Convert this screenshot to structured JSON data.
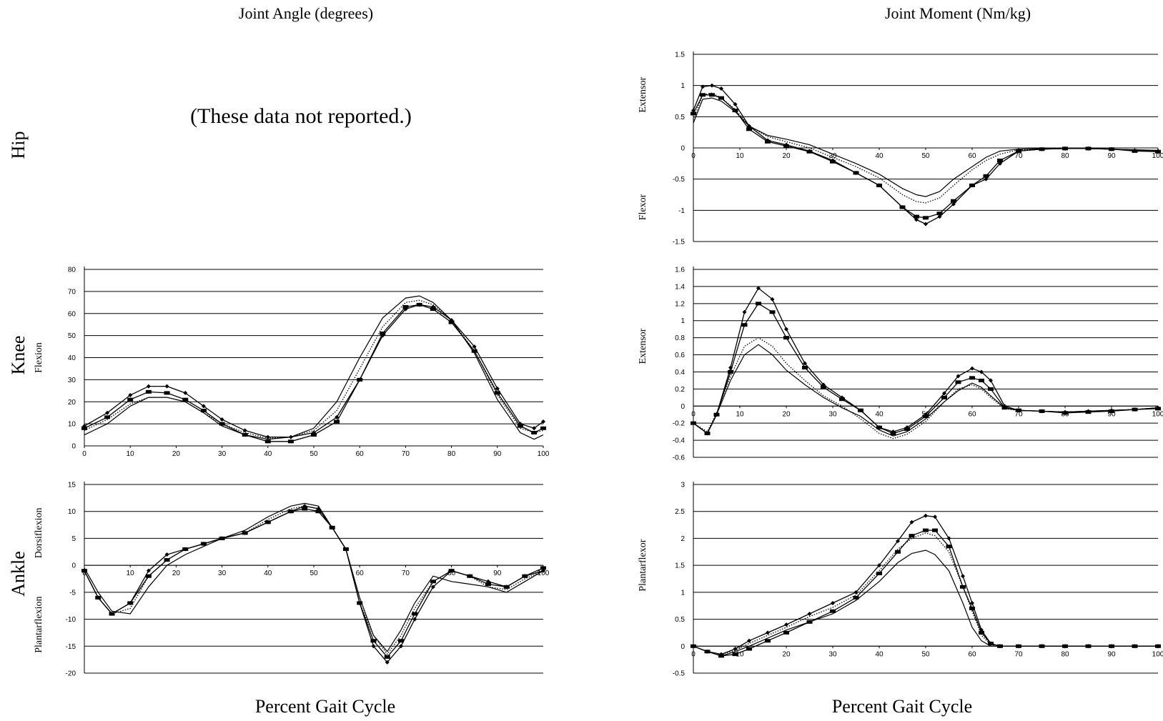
{
  "header": {
    "left_title": "Joint Angle (degrees)",
    "right_title": "Joint Moment (Nm/kg)"
  },
  "rows": {
    "hip": "Hip",
    "knee": "Knee",
    "ankle": "Ankle"
  },
  "hip_angle_note": "(These data not reported.)",
  "x_axis_label": "Percent Gait Cycle",
  "chart_data": [
    {
      "id": "knee-angle",
      "type": "line",
      "ylim": [
        0,
        80
      ],
      "yticks": [
        0,
        10,
        20,
        30,
        40,
        50,
        60,
        70,
        80
      ],
      "xlim": [
        0,
        100
      ],
      "xticks": [
        0,
        10,
        20,
        30,
        40,
        50,
        60,
        70,
        80,
        90,
        100
      ],
      "y_direction_labels": [
        {
          "text": "Flexion",
          "at": 40
        }
      ],
      "x": [
        0,
        5,
        10,
        14,
        18,
        22,
        26,
        30,
        35,
        40,
        45,
        50,
        55,
        60,
        65,
        70,
        73,
        76,
        80,
        85,
        90,
        95,
        98,
        100
      ],
      "series": [
        {
          "style": "diamond",
          "values": [
            9,
            15,
            23,
            27,
            27,
            24,
            18,
            12,
            7,
            4,
            4,
            6,
            13,
            30,
            50,
            62,
            64,
            63,
            57,
            45,
            26,
            10,
            8,
            11
          ]
        },
        {
          "style": "square",
          "values": [
            8,
            13,
            21,
            24.5,
            24,
            21,
            16,
            10,
            5,
            2,
            2,
            5,
            11,
            30,
            51,
            63,
            64,
            62,
            56,
            43,
            24,
            9,
            6,
            8
          ]
        },
        {
          "style": "dotted",
          "values": [
            7,
            12,
            19,
            22,
            22,
            20,
            15,
            10,
            6,
            3.5,
            4,
            7,
            16,
            35,
            54,
            65,
            66,
            64,
            57,
            43,
            23,
            8,
            6,
            7
          ]
        },
        {
          "style": "solid",
          "values": [
            5,
            10,
            18,
            22,
            22,
            20,
            15,
            9,
            5,
            3,
            4,
            8,
            20,
            40,
            58,
            67,
            68,
            65,
            57,
            42,
            21,
            6,
            3,
            5
          ]
        }
      ]
    },
    {
      "id": "ankle-angle",
      "type": "line",
      "ylim": [
        -20,
        15
      ],
      "yticks": [
        -20,
        -15,
        -10,
        -5,
        0,
        5,
        10,
        15
      ],
      "xlim": [
        0,
        100
      ],
      "xticks": [
        0,
        10,
        20,
        30,
        40,
        50,
        60,
        70,
        80,
        90,
        100
      ],
      "y_direction_labels": [
        {
          "text": "Dorsiflexion",
          "at": 6
        },
        {
          "text": "Plantarflexion",
          "at": -11
        }
      ],
      "x": [
        0,
        3,
        6,
        10,
        14,
        18,
        22,
        26,
        30,
        35,
        40,
        45,
        48,
        51,
        54,
        57,
        60,
        63,
        66,
        69,
        72,
        76,
        80,
        84,
        88,
        92,
        96,
        100
      ],
      "series": [
        {
          "style": "diamond",
          "values": [
            -1,
            -6,
            -9,
            -7,
            -1,
            2,
            3,
            4,
            5,
            6,
            8,
            10,
            11,
            10.5,
            7,
            3,
            -7,
            -15,
            -18,
            -15,
            -10,
            -4,
            -1,
            -2,
            -3,
            -4,
            -2,
            -1
          ]
        },
        {
          "style": "square",
          "values": [
            -1,
            -6,
            -9,
            -7,
            -2,
            1,
            3,
            4,
            5,
            6,
            8,
            10,
            10.5,
            10,
            7,
            3,
            -7,
            -14,
            -17,
            -14,
            -9,
            -3,
            -1,
            -2,
            -3.5,
            -4,
            -2,
            -0.5
          ]
        },
        {
          "style": "dotted",
          "values": [
            -1,
            -6,
            -9,
            -8,
            -2,
            1,
            3,
            4,
            5,
            6,
            8.5,
            10.5,
            11,
            10.5,
            7,
            3,
            -7,
            -13,
            -16.5,
            -13,
            -8,
            -3,
            -1,
            -2,
            -4,
            -4.5,
            -2.5,
            -1
          ]
        },
        {
          "style": "solid",
          "values": [
            -0.5,
            -5,
            -8.5,
            -9,
            -4,
            0,
            2,
            3.5,
            5,
            6.5,
            9,
            11,
            11.5,
            11,
            7,
            3,
            -6,
            -13,
            -16,
            -12,
            -7,
            -2,
            -3,
            -3.5,
            -4,
            -5,
            -3,
            -1
          ]
        }
      ]
    },
    {
      "id": "hip-moment",
      "type": "line",
      "ylim": [
        -1.5,
        1.5
      ],
      "yticks": [
        -1.5,
        -1,
        -0.5,
        0,
        0.5,
        1,
        1.5
      ],
      "xlim": [
        0,
        100
      ],
      "xticks": [
        0,
        10,
        20,
        30,
        40,
        50,
        60,
        70,
        80,
        90,
        100
      ],
      "y_direction_labels": [
        {
          "text": "Extensor",
          "at": 0.85
        },
        {
          "text": "Flexor",
          "at": -0.95
        }
      ],
      "x": [
        0,
        2,
        4,
        6,
        9,
        12,
        16,
        20,
        25,
        30,
        35,
        40,
        45,
        48,
        50,
        53,
        56,
        60,
        63,
        66,
        70,
        75,
        80,
        85,
        90,
        95,
        100
      ],
      "series": [
        {
          "style": "diamond",
          "values": [
            0.6,
            0.98,
            1.0,
            0.95,
            0.7,
            0.35,
            0.12,
            0.05,
            -0.05,
            -0.2,
            -0.4,
            -0.6,
            -0.95,
            -1.15,
            -1.22,
            -1.1,
            -0.9,
            -0.6,
            -0.5,
            -0.25,
            -0.05,
            -0.02,
            -0.01,
            -0.01,
            -0.02,
            -0.04,
            -0.05
          ]
        },
        {
          "style": "square",
          "values": [
            0.55,
            0.85,
            0.85,
            0.8,
            0.6,
            0.3,
            0.1,
            0.03,
            -0.06,
            -0.22,
            -0.4,
            -0.6,
            -0.95,
            -1.1,
            -1.12,
            -1.05,
            -0.85,
            -0.6,
            -0.45,
            -0.2,
            -0.05,
            -0.02,
            -0.01,
            -0.01,
            -0.02,
            -0.05,
            -0.06
          ]
        },
        {
          "style": "dotted",
          "values": [
            0.45,
            0.85,
            0.88,
            0.8,
            0.62,
            0.35,
            0.18,
            0.1,
            0.0,
            -0.15,
            -0.3,
            -0.48,
            -0.75,
            -0.86,
            -0.88,
            -0.8,
            -0.6,
            -0.35,
            -0.2,
            -0.1,
            -0.03,
            -0.02,
            -0.01,
            -0.01,
            -0.02,
            -0.03,
            -0.04
          ]
        },
        {
          "style": "solid",
          "values": [
            0.4,
            0.78,
            0.8,
            0.75,
            0.58,
            0.35,
            0.2,
            0.14,
            0.05,
            -0.1,
            -0.25,
            -0.42,
            -0.65,
            -0.75,
            -0.78,
            -0.7,
            -0.5,
            -0.3,
            -0.15,
            -0.05,
            -0.02,
            -0.01,
            -0.01,
            -0.01,
            -0.02,
            -0.03,
            -0.04
          ]
        }
      ]
    },
    {
      "id": "knee-moment",
      "type": "line",
      "ylim": [
        -0.6,
        1.6
      ],
      "yticks": [
        -0.6,
        -0.4,
        -0.2,
        0,
        0.2,
        0.4,
        0.6,
        0.8,
        1,
        1.2,
        1.4,
        1.6
      ],
      "xlim": [
        0,
        100
      ],
      "xticks": [
        0,
        10,
        20,
        30,
        40,
        50,
        60,
        70,
        80,
        90,
        100
      ],
      "y_direction_labels": [
        {
          "text": "Extensor",
          "at": 0.7
        }
      ],
      "x": [
        0,
        3,
        5,
        8,
        11,
        14,
        17,
        20,
        24,
        28,
        32,
        36,
        40,
        43,
        46,
        50,
        54,
        57,
        60,
        62,
        64,
        67,
        70,
        75,
        80,
        85,
        90,
        95,
        100
      ],
      "series": [
        {
          "style": "diamond",
          "values": [
            -0.2,
            -0.32,
            -0.1,
            0.45,
            1.1,
            1.38,
            1.25,
            0.9,
            0.5,
            0.25,
            0.1,
            -0.05,
            -0.25,
            -0.3,
            -0.25,
            -0.1,
            0.15,
            0.35,
            0.44,
            0.4,
            0.3,
            0.0,
            -0.05,
            -0.06,
            -0.07,
            -0.06,
            -0.05,
            -0.04,
            -0.02
          ]
        },
        {
          "style": "square",
          "values": [
            -0.2,
            -0.32,
            -0.1,
            0.4,
            0.95,
            1.2,
            1.1,
            0.8,
            0.45,
            0.22,
            0.08,
            -0.05,
            -0.25,
            -0.32,
            -0.27,
            -0.12,
            0.1,
            0.28,
            0.33,
            0.3,
            0.2,
            -0.02,
            -0.05,
            -0.06,
            -0.08,
            -0.07,
            -0.06,
            -0.04,
            -0.03
          ]
        },
        {
          "style": "dotted",
          "values": [
            -0.2,
            -0.3,
            -0.08,
            0.35,
            0.7,
            0.8,
            0.7,
            0.5,
            0.3,
            0.12,
            0.0,
            -0.15,
            -0.32,
            -0.38,
            -0.33,
            -0.18,
            0.05,
            0.2,
            0.25,
            0.2,
            0.1,
            -0.03,
            -0.05,
            -0.06,
            -0.07,
            -0.06,
            -0.05,
            -0.04,
            -0.02
          ]
        },
        {
          "style": "solid",
          "values": [
            -0.2,
            -0.32,
            -0.1,
            0.3,
            0.6,
            0.72,
            0.6,
            0.42,
            0.25,
            0.1,
            -0.02,
            -0.12,
            -0.28,
            -0.35,
            -0.3,
            -0.15,
            0.05,
            0.18,
            0.27,
            0.22,
            0.12,
            -0.02,
            -0.05,
            -0.06,
            -0.07,
            -0.06,
            -0.05,
            -0.04,
            -0.02
          ]
        }
      ]
    },
    {
      "id": "ankle-moment",
      "type": "line",
      "ylim": [
        -0.5,
        3
      ],
      "yticks": [
        -0.5,
        0,
        0.5,
        1,
        1.5,
        2,
        2.5,
        3
      ],
      "xlim": [
        0,
        100
      ],
      "xticks": [
        0,
        10,
        20,
        30,
        40,
        50,
        60,
        70,
        80,
        90,
        100
      ],
      "y_direction_labels": [
        {
          "text": "Plantarflexor",
          "at": 1.5
        }
      ],
      "x": [
        0,
        3,
        6,
        9,
        12,
        16,
        20,
        25,
        30,
        35,
        40,
        44,
        47,
        50,
        52,
        55,
        58,
        60,
        62,
        64,
        66,
        70,
        75,
        80,
        85,
        90,
        95,
        100
      ],
      "series": [
        {
          "style": "diamond",
          "values": [
            0,
            -0.1,
            -0.15,
            -0.05,
            0.1,
            0.25,
            0.4,
            0.6,
            0.8,
            1.0,
            1.5,
            1.95,
            2.3,
            2.42,
            2.4,
            2.0,
            1.3,
            0.8,
            0.3,
            0.05,
            0.0,
            0.0,
            0.0,
            0.0,
            0.0,
            0.0,
            0.0,
            0.0
          ]
        },
        {
          "style": "square",
          "values": [
            0,
            -0.1,
            -0.18,
            -0.15,
            -0.05,
            0.1,
            0.25,
            0.45,
            0.65,
            0.9,
            1.35,
            1.75,
            2.05,
            2.15,
            2.15,
            1.85,
            1.1,
            0.7,
            0.25,
            0.05,
            0.0,
            0.0,
            0.0,
            0.0,
            0.0,
            0.0,
            0.0,
            0.0
          ]
        },
        {
          "style": "dotted",
          "values": [
            0,
            -0.1,
            -0.15,
            -0.08,
            0.05,
            0.2,
            0.35,
            0.55,
            0.72,
            0.95,
            1.4,
            1.8,
            2.0,
            2.1,
            2.05,
            1.75,
            1.1,
            0.65,
            0.2,
            0.03,
            0.0,
            0.0,
            0.0,
            0.0,
            0.0,
            0.0,
            0.0,
            0.0
          ]
        },
        {
          "style": "solid",
          "values": [
            0,
            -0.1,
            -0.18,
            -0.1,
            0.0,
            0.15,
            0.3,
            0.45,
            0.6,
            0.85,
            1.2,
            1.55,
            1.72,
            1.78,
            1.7,
            1.4,
            0.8,
            0.35,
            0.1,
            0.0,
            0.0,
            0.0,
            0.0,
            0.0,
            0.0,
            0.0,
            0.0,
            0.0
          ]
        }
      ]
    }
  ]
}
